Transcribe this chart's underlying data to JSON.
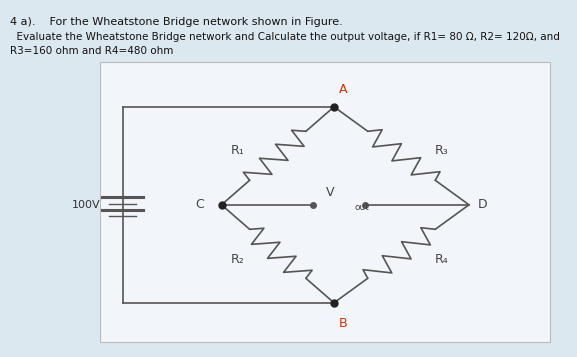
{
  "title_line1": "4 a).    For the Wheatstone Bridge network shown in Figure.",
  "title_line2": "  Evaluate the Wheatstone Bridge network and Calculate the output voltage, if R1= 80 Ω, R2= 120Ω, and",
  "title_line3": "R3=160 ohm and R4=480 ohm",
  "bg_color": "#dce8f0",
  "box_facecolor": "#f0f4f8",
  "circuit_color": "#444444",
  "label_A": "A",
  "label_B": "B",
  "label_C": "C",
  "label_D": "D",
  "label_R1": "R₁",
  "label_R2": "R₂",
  "label_R3": "R₃",
  "label_R4": "R₄",
  "label_Vout": "V",
  "label_Vout_sub": "out",
  "label_V": "100V",
  "node_color_red": "#cc3300",
  "resistor_color": "#555555",
  "line_color": "#555555",
  "n_zags": 7,
  "zag_amp": 0.028
}
